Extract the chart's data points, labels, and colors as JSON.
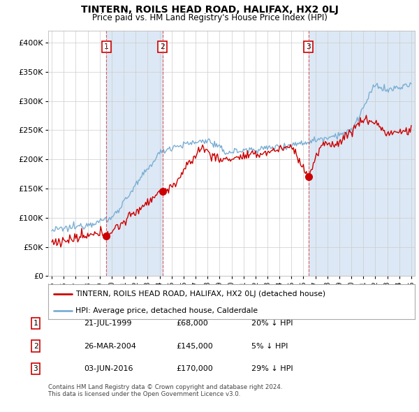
{
  "title": "TINTERN, ROILS HEAD ROAD, HALIFAX, HX2 0LJ",
  "subtitle": "Price paid vs. HM Land Registry's House Price Index (HPI)",
  "legend_entry1": "TINTERN, ROILS HEAD ROAD, HALIFAX, HX2 0LJ (detached house)",
  "legend_entry2": "HPI: Average price, detached house, Calderdale",
  "footer1": "Contains HM Land Registry data © Crown copyright and database right 2024.",
  "footer2": "This data is licensed under the Open Government Licence v3.0.",
  "red_color": "#cc0000",
  "blue_color": "#7bafd4",
  "shade_color": "#dce8f5",
  "background_color": "#ffffff",
  "table_rows": [
    {
      "num": "1",
      "date": "21-JUL-1999",
      "price": "£68,000",
      "hpi": "20% ↓ HPI"
    },
    {
      "num": "2",
      "date": "26-MAR-2004",
      "price": "£145,000",
      "hpi": "5% ↓ HPI"
    },
    {
      "num": "3",
      "date": "03-JUN-2016",
      "price": "£170,000",
      "hpi": "29% ↓ HPI"
    }
  ],
  "sale_dates": [
    1999.554,
    2004.23,
    2016.42
  ],
  "sale_prices": [
    68000,
    145000,
    170000
  ],
  "ylim": [
    0,
    420000
  ],
  "yticks": [
    0,
    50000,
    100000,
    150000,
    200000,
    250000,
    300000,
    350000,
    400000
  ],
  "xlim_start": 1994.7,
  "xlim_end": 2025.3
}
